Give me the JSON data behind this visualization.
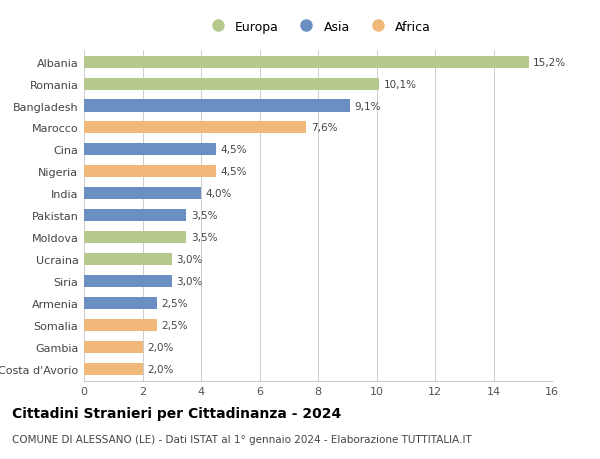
{
  "categories": [
    "Albania",
    "Romania",
    "Bangladesh",
    "Marocco",
    "Cina",
    "Nigeria",
    "India",
    "Pakistan",
    "Moldova",
    "Ucraina",
    "Siria",
    "Armenia",
    "Somalia",
    "Gambia",
    "Costa d'Avorio"
  ],
  "values": [
    15.2,
    10.1,
    9.1,
    7.6,
    4.5,
    4.5,
    4.0,
    3.5,
    3.5,
    3.0,
    3.0,
    2.5,
    2.5,
    2.0,
    2.0
  ],
  "labels": [
    "15,2%",
    "10,1%",
    "9,1%",
    "7,6%",
    "4,5%",
    "4,5%",
    "4,0%",
    "3,5%",
    "3,5%",
    "3,0%",
    "3,0%",
    "2,5%",
    "2,5%",
    "2,0%",
    "2,0%"
  ],
  "continents": [
    "Europa",
    "Europa",
    "Asia",
    "Africa",
    "Asia",
    "Africa",
    "Asia",
    "Asia",
    "Europa",
    "Europa",
    "Asia",
    "Asia",
    "Africa",
    "Africa",
    "Africa"
  ],
  "colors": {
    "Europa": "#b5c98e",
    "Asia": "#6b8fc2",
    "Africa": "#f0b97a"
  },
  "legend_labels": [
    "Europa",
    "Asia",
    "Africa"
  ],
  "title": "Cittadini Stranieri per Cittadinanza - 2024",
  "subtitle": "COMUNE DI ALESSANO (LE) - Dati ISTAT al 1° gennaio 2024 - Elaborazione TUTTITALIA.IT",
  "xlim": [
    0,
    16
  ],
  "xticks": [
    0,
    2,
    4,
    6,
    8,
    10,
    12,
    14,
    16
  ],
  "background_color": "#ffffff",
  "grid_color": "#cccccc",
  "bar_height": 0.55,
  "label_fontsize": 7.5,
  "tick_fontsize": 8,
  "title_fontsize": 10,
  "subtitle_fontsize": 7.5
}
